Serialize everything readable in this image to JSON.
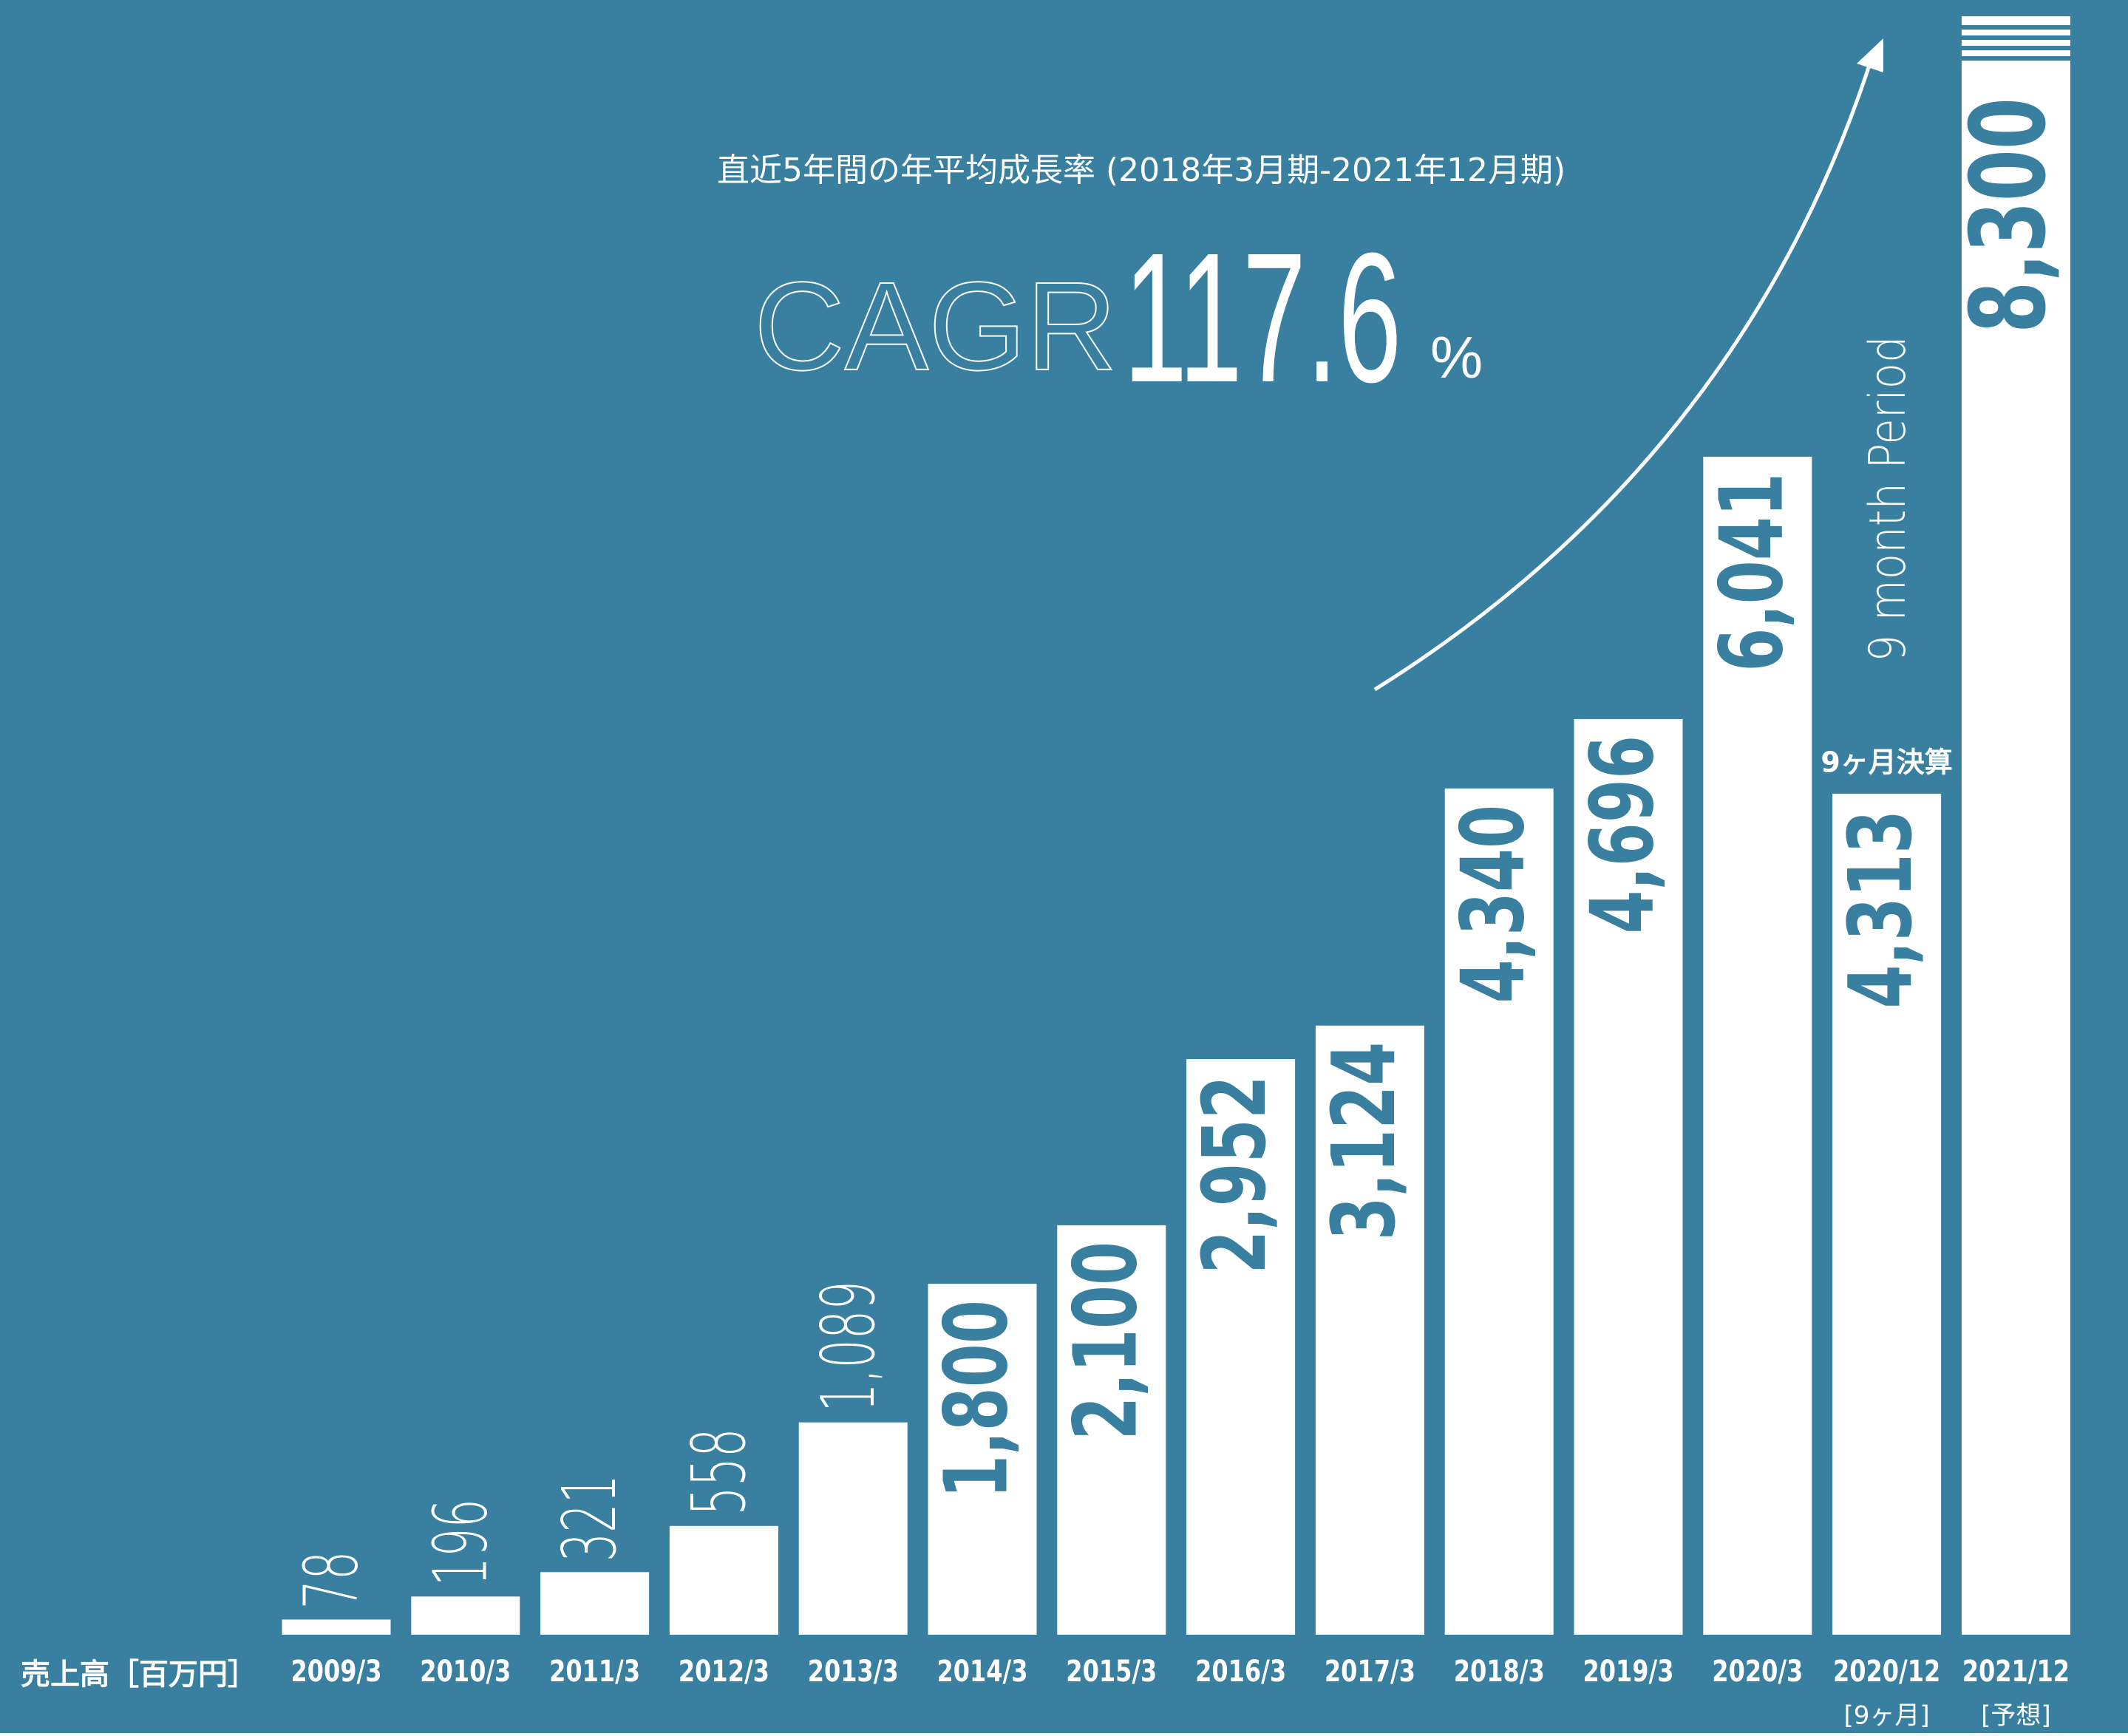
{
  "chart_data": {
    "type": "bar",
    "title": "直近5年間の年平均成長率 (2018年3月期-2021年12月期)",
    "cagr_label": "CAGR",
    "cagr_value": 117.6,
    "cagr_unit": "%",
    "y_label": "売上高［百万円］",
    "categories": [
      "2009/3",
      "2010/3",
      "2011/3",
      "2012/3",
      "2013/3",
      "2014/3",
      "2015/3",
      "2016/3",
      "2017/3",
      "2018/3",
      "2019/3",
      "2020/3",
      "2020/12",
      "2021/12"
    ],
    "sub_labels": [
      null,
      null,
      null,
      null,
      null,
      null,
      null,
      null,
      null,
      null,
      null,
      null,
      "[9ヶ月]",
      "[予想]"
    ],
    "values": [
      78,
      196,
      321,
      558,
      1089,
      1800,
      2100,
      2952,
      3124,
      4340,
      4696,
      6041,
      4313,
      8300
    ],
    "value_labels": [
      "78",
      "196",
      "321",
      "558",
      "1,089",
      "1,800",
      "2,100",
      "2,952",
      "3,124",
      "4,340",
      "4,696",
      "6,041",
      "4,313",
      "8,300"
    ],
    "annotations": [
      "9ヶ月決算",
      "9 month Period"
    ],
    "color": "#ffffff",
    "background": "#387fa0"
  }
}
